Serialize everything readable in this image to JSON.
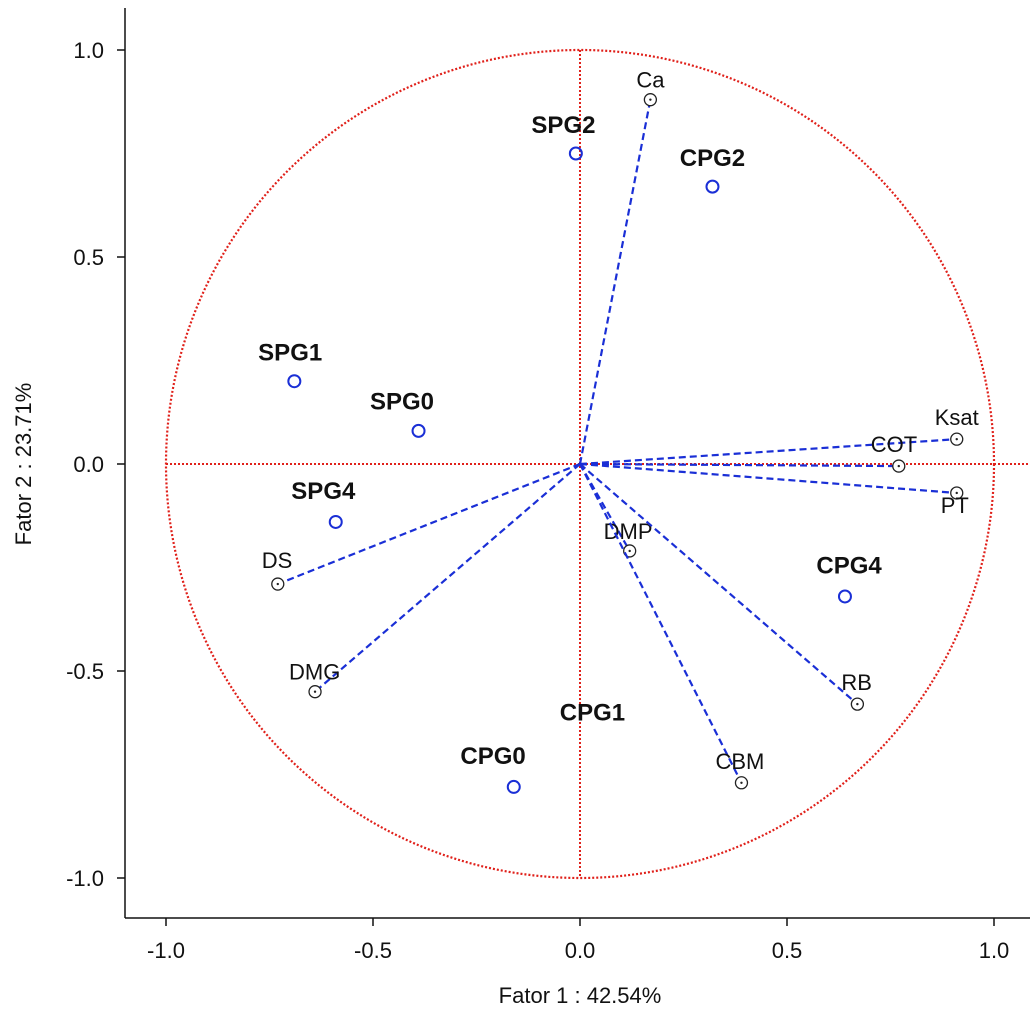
{
  "chart_data": {
    "type": "scatter",
    "subtype": "pca-correlation-circle",
    "title": "",
    "xlabel": "Fator 1 : 42.54%",
    "ylabel": "Fator 2 : 23.71%",
    "xlim": [
      -1.1,
      1.1
    ],
    "ylim": [
      -1.1,
      1.1
    ],
    "xticks": [
      "-1.0",
      "-0.5",
      "0.0",
      "0.5",
      "1.0"
    ],
    "yticks": [
      "1.0",
      "0.5",
      "0.0",
      "-0.5",
      "-1.0"
    ],
    "grid": false,
    "unit_circle": true,
    "colors": {
      "circle": "#e0201a",
      "vector": "#1a2fd6",
      "observation": "#1a2fd6",
      "variable_marker": "#222222"
    },
    "variables": [
      {
        "name": "Ca",
        "x": 0.17,
        "y": 0.88
      },
      {
        "name": "Ksat",
        "x": 0.91,
        "y": 0.06
      },
      {
        "name": "COT",
        "x": 0.77,
        "y": -0.005
      },
      {
        "name": "PT",
        "x": 0.91,
        "y": -0.07
      },
      {
        "name": "DMP",
        "x": 0.12,
        "y": -0.21
      },
      {
        "name": "RB",
        "x": 0.67,
        "y": -0.58
      },
      {
        "name": "CBM",
        "x": 0.39,
        "y": -0.77
      },
      {
        "name": "DS",
        "x": -0.73,
        "y": -0.29
      },
      {
        "name": "DMG",
        "x": -0.64,
        "y": -0.55
      }
    ],
    "observations": [
      {
        "name": "SPG2",
        "x": -0.01,
        "y": 0.75
      },
      {
        "name": "CPG2",
        "x": 0.32,
        "y": 0.67
      },
      {
        "name": "SPG1",
        "x": -0.69,
        "y": 0.2
      },
      {
        "name": "SPG0",
        "x": -0.39,
        "y": 0.08
      },
      {
        "name": "SPG4",
        "x": -0.59,
        "y": -0.14
      },
      {
        "name": "CPG4",
        "x": 0.64,
        "y": -0.32
      },
      {
        "name": "CPG1",
        "x": null,
        "y": null
      },
      {
        "name": "CPG0",
        "x": -0.16,
        "y": -0.78
      }
    ]
  }
}
